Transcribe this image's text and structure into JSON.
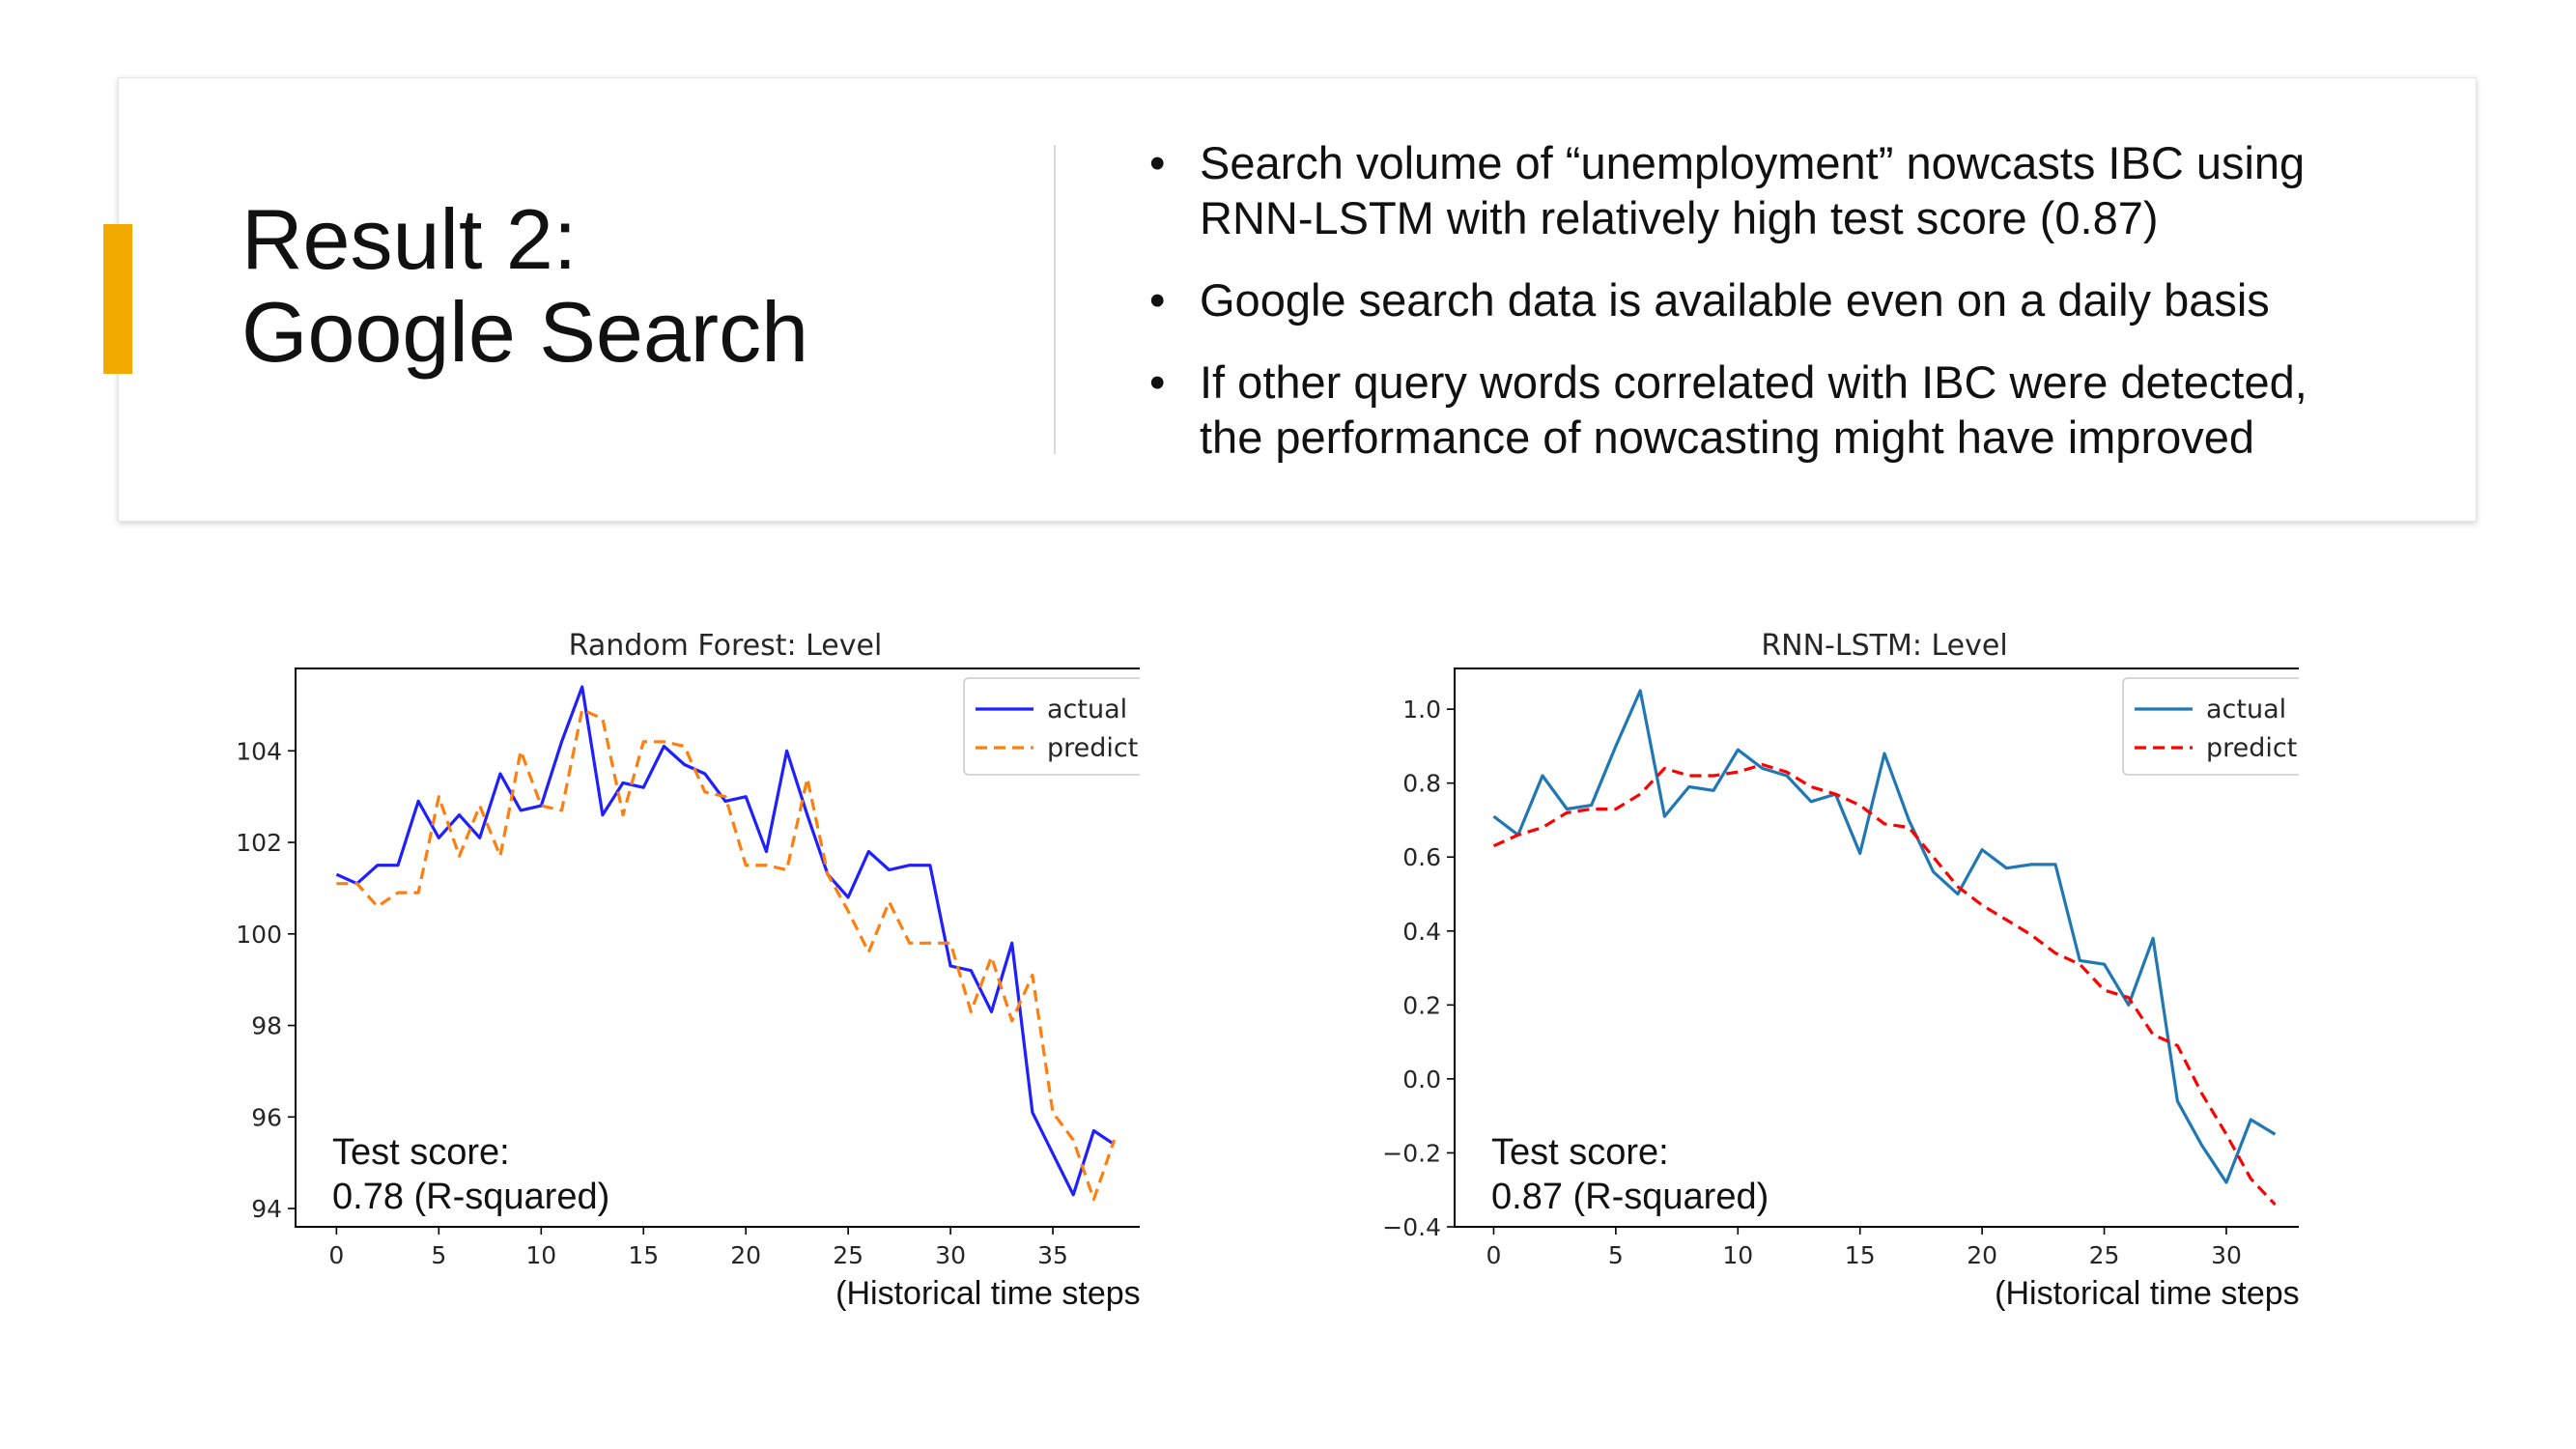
{
  "slide": {
    "title_lines": [
      "Result 2:",
      "Google Search"
    ],
    "accent_color": "#F2A900",
    "bullets": [
      {
        "lines": [
          "Search volume of “unemployment” nowcasts IBC using",
          "RNN-LSTM with relatively high test score (0.87)"
        ]
      },
      {
        "lines": [
          "Google search data is available even on a daily basis"
        ]
      },
      {
        "lines": [
          "If other query words correlated with IBC were detected,",
          "the performance of nowcasting might have improved"
        ]
      }
    ],
    "bullet_symbol": "•"
  },
  "chart_data": [
    {
      "type": "line",
      "title": "Random Forest: Level",
      "xlabel": "(Historical time steps)",
      "ylabel": "",
      "xlim": [
        -2,
        40
      ],
      "ylim": [
        93.6,
        105.8
      ],
      "xticks": [
        0,
        5,
        10,
        15,
        20,
        25,
        30,
        35
      ],
      "yticks": [
        94,
        96,
        98,
        100,
        102,
        104
      ],
      "grid": false,
      "legend_position": "top-right",
      "annotation": [
        "Test score:",
        "0.78 (R-squared)"
      ],
      "x": [
        0,
        1,
        2,
        3,
        4,
        5,
        6,
        7,
        8,
        9,
        10,
        11,
        12,
        13,
        14,
        15,
        16,
        17,
        18,
        19,
        20,
        21,
        22,
        23,
        24,
        25,
        26,
        27,
        28,
        29,
        30,
        31,
        32,
        33,
        34,
        35,
        36,
        37,
        38
      ],
      "series": [
        {
          "name": "actual",
          "color": "#1f1fff",
          "style": "solid",
          "values": [
            101.3,
            101.1,
            101.5,
            101.5,
            102.9,
            102.1,
            102.6,
            102.1,
            103.5,
            102.7,
            102.8,
            104.2,
            105.4,
            102.6,
            103.3,
            103.2,
            104.1,
            103.7,
            103.5,
            102.9,
            103.0,
            101.8,
            104.0,
            102.6,
            101.3,
            100.8,
            101.8,
            101.4,
            101.5,
            101.5,
            99.3,
            99.2,
            98.3,
            99.8,
            96.1,
            95.2,
            94.3,
            95.7,
            95.4
          ]
        },
        {
          "name": "predict",
          "color": "#ff7f0e",
          "style": "dashed",
          "values": [
            101.1,
            101.1,
            100.6,
            100.9,
            100.9,
            103.0,
            101.7,
            102.8,
            101.7,
            104.0,
            102.8,
            102.7,
            104.9,
            104.7,
            102.6,
            104.2,
            104.2,
            104.1,
            103.1,
            103.0,
            101.5,
            101.5,
            101.4,
            103.4,
            101.3,
            100.5,
            99.6,
            100.7,
            99.8,
            99.8,
            99.8,
            98.3,
            99.5,
            98.1,
            99.1,
            96.1,
            95.5,
            94.2,
            95.5
          ]
        }
      ]
    },
    {
      "type": "line",
      "title": "RNN-LSTM: Level",
      "xlabel": "(Historical time steps)",
      "ylabel": "",
      "xlim": [
        -1.6,
        33.6
      ],
      "ylim": [
        -0.4,
        1.11
      ],
      "xticks": [
        0,
        5,
        10,
        15,
        20,
        25,
        30
      ],
      "yticks": [
        -0.4,
        -0.2,
        0.0,
        0.2,
        0.4,
        0.6,
        0.8,
        1.0
      ],
      "ytick_labels": [
        "−0.4",
        "−0.2",
        "0.0",
        "0.2",
        "0.4",
        "0.6",
        "0.8",
        "1.0"
      ],
      "grid": false,
      "legend_position": "top-right",
      "annotation": [
        "Test score:",
        "0.87 (R-squared)"
      ],
      "x": [
        0,
        1,
        2,
        3,
        4,
        5,
        6,
        7,
        8,
        9,
        10,
        11,
        12,
        13,
        14,
        15,
        16,
        17,
        18,
        19,
        20,
        21,
        22,
        23,
        24,
        25,
        26,
        27,
        28,
        29,
        30,
        31,
        32
      ],
      "series": [
        {
          "name": "actual",
          "color": "#1f77b4",
          "style": "solid",
          "values": [
            0.71,
            0.66,
            0.82,
            0.73,
            0.74,
            0.9,
            1.05,
            0.71,
            0.79,
            0.78,
            0.89,
            0.84,
            0.82,
            0.75,
            0.77,
            0.61,
            0.88,
            0.7,
            0.56,
            0.5,
            0.62,
            0.57,
            0.58,
            0.58,
            0.32,
            0.31,
            0.2,
            0.38,
            -0.06,
            -0.18,
            -0.28,
            -0.11,
            -0.15
          ]
        },
        {
          "name": "predict",
          "color": "#ff0000",
          "style": "dashed",
          "values": [
            0.63,
            0.66,
            0.68,
            0.72,
            0.73,
            0.73,
            0.77,
            0.84,
            0.82,
            0.82,
            0.83,
            0.85,
            0.83,
            0.79,
            0.77,
            0.74,
            0.69,
            0.68,
            0.6,
            0.52,
            0.47,
            0.43,
            0.39,
            0.34,
            0.31,
            0.24,
            0.22,
            0.12,
            0.09,
            -0.04,
            -0.15,
            -0.27,
            -0.34
          ]
        }
      ]
    }
  ]
}
